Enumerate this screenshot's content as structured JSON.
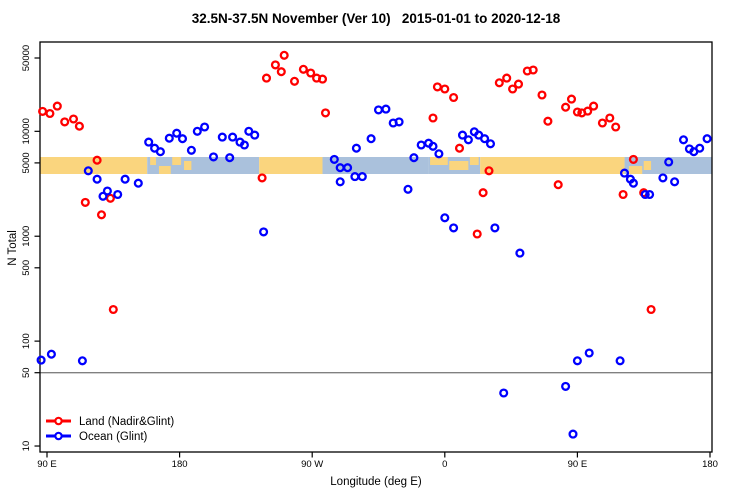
{
  "title": "32.5N-37.5N November (Ver 10)   2015-01-01 to 2020-12-18",
  "colors": {
    "land_series": "#FF0000",
    "ocean_series": "#0000FF",
    "band_land": "#FAD57E",
    "band_ocean": "#AAC1DC",
    "reference_line": "#808080",
    "axis": "#000000"
  },
  "chart_data": {
    "type": "scatter",
    "title": "32.5N-37.5N November (Ver 10)   2015-01-01 to 2020-12-18",
    "xlabel": "Longitude (deg E)",
    "ylabel": "N Total",
    "x_axis": {
      "note": "longitude axis wraps eastward from 90E around the globe to 180; stored as continuous deg 90..540",
      "ticks_deg": [
        90,
        180,
        270,
        360,
        450,
        540
      ],
      "tick_labels": [
        "90 E",
        "180",
        "90 W",
        "0",
        "90 E",
        "180"
      ],
      "range_deg": [
        85,
        541
      ]
    },
    "y_axis": {
      "scale": "log",
      "ticks": [
        50000,
        10000,
        5000,
        1000,
        500,
        100,
        50,
        10
      ],
      "tick_labels": [
        "50000",
        "10000",
        "5000",
        "1000",
        "500",
        "100",
        "50",
        "10"
      ],
      "range": [
        8.5,
        68000
      ]
    },
    "reference_line_N": 50,
    "band": {
      "center_N": 5000,
      "legend_meaning": "land/ocean strip along 32.5N-37.5N latitude belt",
      "segments": [
        {
          "from_deg": 85,
          "to_deg": 158,
          "type": "land"
        },
        {
          "from_deg": 158,
          "to_deg": 234,
          "type": "ocean"
        },
        {
          "from_deg": 234,
          "to_deg": 277,
          "type": "land"
        },
        {
          "from_deg": 277,
          "to_deg": 349,
          "type": "ocean"
        },
        {
          "from_deg": 349,
          "to_deg": 384,
          "type": "ocean"
        },
        {
          "from_deg": 384,
          "to_deg": 482,
          "type": "land"
        },
        {
          "from_deg": 482,
          "to_deg": 541,
          "type": "ocean"
        }
      ],
      "island_patches": [
        {
          "from_deg": 160,
          "to_deg": 164,
          "v": "top"
        },
        {
          "from_deg": 166,
          "to_deg": 174,
          "v": "bottom"
        },
        {
          "from_deg": 175,
          "to_deg": 181,
          "v": "top"
        },
        {
          "from_deg": 183,
          "to_deg": 188,
          "v": "mid"
        },
        {
          "from_deg": 350,
          "to_deg": 362,
          "v": "top"
        },
        {
          "from_deg": 363,
          "to_deg": 376,
          "v": "mid"
        },
        {
          "from_deg": 377,
          "to_deg": 383,
          "v": "top"
        },
        {
          "from_deg": 485,
          "to_deg": 494,
          "v": "bottom"
        },
        {
          "from_deg": 495,
          "to_deg": 500,
          "v": "mid"
        }
      ]
    },
    "series": [
      {
        "name": "Land (Nadir&Glint)",
        "color": "#FF0000",
        "points": [
          [
            87,
            15500
          ],
          [
            92,
            14800
          ],
          [
            97,
            17400
          ],
          [
            102,
            12300
          ],
          [
            108,
            13100
          ],
          [
            112,
            11200
          ],
          [
            124,
            5300
          ],
          [
            116,
            2100
          ],
          [
            127,
            1600
          ],
          [
            133,
            2300
          ],
          [
            135,
            200
          ],
          [
            251,
            53000
          ],
          [
            245,
            43000
          ],
          [
            249,
            37000
          ],
          [
            239,
            32200
          ],
          [
            258,
            30000
          ],
          [
            264,
            39000
          ],
          [
            269,
            36000
          ],
          [
            273,
            32200
          ],
          [
            277,
            31500
          ],
          [
            279,
            15000
          ],
          [
            236,
            3600
          ],
          [
            355,
            26500
          ],
          [
            360,
            25300
          ],
          [
            366,
            21000
          ],
          [
            352,
            13400
          ],
          [
            370,
            6900
          ],
          [
            390,
            4200
          ],
          [
            386,
            2600
          ],
          [
            382,
            1050
          ],
          [
            397,
            29000
          ],
          [
            402,
            32200
          ],
          [
            406,
            25300
          ],
          [
            410,
            28200
          ],
          [
            416,
            37600
          ],
          [
            420,
            38400
          ],
          [
            426,
            22200
          ],
          [
            430,
            12500
          ],
          [
            437,
            3100
          ],
          [
            442,
            17000
          ],
          [
            446,
            20300
          ],
          [
            450,
            15300
          ],
          [
            453,
            15000
          ],
          [
            457,
            15600
          ],
          [
            461,
            17400
          ],
          [
            467,
            12000
          ],
          [
            472,
            13400
          ],
          [
            476,
            11000
          ],
          [
            488,
            5400
          ],
          [
            481,
            2500
          ],
          [
            495,
            2600
          ],
          [
            500,
            200
          ]
        ]
      },
      {
        "name": "Ocean (Glint)",
        "color": "#0000FF",
        "points": [
          [
            118,
            4200
          ],
          [
            124,
            3500
          ],
          [
            128,
            2400
          ],
          [
            131,
            2700
          ],
          [
            138,
            2500
          ],
          [
            143,
            3500
          ],
          [
            152,
            3200
          ],
          [
            159,
            7900
          ],
          [
            163,
            6900
          ],
          [
            167,
            6400
          ],
          [
            173,
            8600
          ],
          [
            178,
            9600
          ],
          [
            182,
            8500
          ],
          [
            188,
            6600
          ],
          [
            192,
            10000
          ],
          [
            197,
            11000
          ],
          [
            203,
            5700
          ],
          [
            214,
            5600
          ],
          [
            209,
            8800
          ],
          [
            216,
            8800
          ],
          [
            221,
            7900
          ],
          [
            224,
            7400
          ],
          [
            227,
            10000
          ],
          [
            231,
            9200
          ],
          [
            237,
            1100
          ],
          [
            285,
            5400
          ],
          [
            289,
            4500
          ],
          [
            294,
            4500
          ],
          [
            300,
            6900
          ],
          [
            289,
            3300
          ],
          [
            299,
            3700
          ],
          [
            304,
            3700
          ],
          [
            315,
            16000
          ],
          [
            320,
            16300
          ],
          [
            310,
            8500
          ],
          [
            325,
            12000
          ],
          [
            329,
            12300
          ],
          [
            335,
            2800
          ],
          [
            339,
            5600
          ],
          [
            344,
            7400
          ],
          [
            349,
            7700
          ],
          [
            352,
            7200
          ],
          [
            356,
            6100
          ],
          [
            372,
            9200
          ],
          [
            376,
            8300
          ],
          [
            380,
            9900
          ],
          [
            383,
            9200
          ],
          [
            387,
            8500
          ],
          [
            391,
            7600
          ],
          [
            360,
            1500
          ],
          [
            366,
            1200
          ],
          [
            394,
            1200
          ],
          [
            411,
            690
          ],
          [
            482,
            4000
          ],
          [
            486,
            3500
          ],
          [
            488,
            3200
          ],
          [
            496,
            2500
          ],
          [
            499,
            2500
          ],
          [
            508,
            3600
          ],
          [
            512,
            5100
          ],
          [
            516,
            3300
          ],
          [
            522,
            8300
          ],
          [
            526,
            6800
          ],
          [
            529,
            6400
          ],
          [
            533,
            6900
          ],
          [
            538,
            8500
          ],
          [
            400,
            32
          ],
          [
            442,
            37
          ],
          [
            450,
            65
          ],
          [
            458,
            77
          ],
          [
            479,
            65
          ],
          [
            447,
            13
          ],
          [
            86,
            66
          ],
          [
            93,
            75
          ],
          [
            114,
            65
          ]
        ]
      }
    ],
    "legend": {
      "position": "bottom-left",
      "items": [
        "Land (Nadir&Glint)",
        "Ocean (Glint)"
      ]
    }
  }
}
